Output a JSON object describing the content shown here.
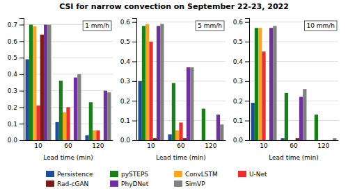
{
  "title": "CSI for narrow convection on September 22-23, 2022",
  "chart_data": [
    {
      "type": "bar",
      "title": "1 mm/h",
      "xlabel": "Lead time (min)",
      "categories": [
        "10",
        "60",
        "120"
      ],
      "series": [
        {
          "name": "Persistence",
          "color": "#1f4e99",
          "values": [
            0.49,
            0.11,
            0.03
          ]
        },
        {
          "name": "pySTEPS",
          "color": "#1a7f1a",
          "values": [
            0.7,
            0.36,
            0.23
          ]
        },
        {
          "name": "ConvLSTM",
          "color": "#f5a623",
          "values": [
            0.69,
            0.17,
            0.06
          ]
        },
        {
          "name": "U-Net",
          "color": "#e83030",
          "values": [
            0.21,
            0.2,
            0.06
          ]
        },
        {
          "name": "Rad-cGAN",
          "color": "#7b1c1c",
          "values": [
            0.64,
            0.0,
            0.0
          ]
        },
        {
          "name": "PhyDNet",
          "color": "#7030a0",
          "values": [
            0.7,
            0.38,
            0.3
          ]
        },
        {
          "name": "SimVP",
          "color": "#808080",
          "values": [
            0.7,
            0.4,
            0.29
          ]
        }
      ],
      "ylim": [
        0.0,
        0.74
      ],
      "yticks": [
        {
          "value": 0.0,
          "label": "0.0"
        },
        0.1,
        0.2,
        0.3,
        0.4,
        0.5,
        0.6,
        0.7
      ],
      "grid": true,
      "legend": "bottom"
    },
    {
      "type": "bar",
      "title": "5 mm/h",
      "xlabel": "Lead time (min)",
      "categories": [
        "10",
        "60",
        "120"
      ],
      "series": [
        {
          "name": "Persistence",
          "color": "#1f4e99",
          "values": [
            0.3,
            0.03,
            0.0
          ]
        },
        {
          "name": "pySTEPS",
          "color": "#1a7f1a",
          "values": [
            0.58,
            0.29,
            0.16
          ]
        },
        {
          "name": "ConvLSTM",
          "color": "#f5a623",
          "values": [
            0.59,
            0.05,
            0.0
          ]
        },
        {
          "name": "U-Net",
          "color": "#e83030",
          "values": [
            0.5,
            0.09,
            0.0
          ]
        },
        {
          "name": "Rad-cGAN",
          "color": "#7b1c1c",
          "values": [
            0.01,
            0.01,
            0.0
          ]
        },
        {
          "name": "PhyDNet",
          "color": "#7030a0",
          "values": [
            0.58,
            0.37,
            0.13
          ]
        },
        {
          "name": "SimVP",
          "color": "#808080",
          "values": [
            0.59,
            0.37,
            0.08
          ]
        }
      ],
      "ylim": [
        0.0,
        0.62
      ],
      "yticks": [
        {
          "value": 0.0,
          "label": "0.0"
        },
        0.1,
        0.2,
        0.3,
        0.4,
        0.5,
        0.6
      ],
      "grid": true
    },
    {
      "type": "bar",
      "title": "10 mm/h",
      "xlabel": "Lead time (min)",
      "categories": [
        "10",
        "60",
        "120"
      ],
      "series": [
        {
          "name": "Persistence",
          "color": "#1f4e99",
          "values": [
            0.19,
            0.01,
            0.0
          ]
        },
        {
          "name": "pySTEPS",
          "color": "#1a7f1a",
          "values": [
            0.57,
            0.24,
            0.13
          ]
        },
        {
          "name": "ConvLSTM",
          "color": "#f5a623",
          "values": [
            0.57,
            0.0,
            0.0
          ]
        },
        {
          "name": "U-Net",
          "color": "#e83030",
          "values": [
            0.45,
            0.0,
            0.0
          ]
        },
        {
          "name": "Rad-cGAN",
          "color": "#7b1c1c",
          "values": [
            0.0,
            0.01,
            0.0
          ]
        },
        {
          "name": "PhyDNet",
          "color": "#7030a0",
          "values": [
            0.57,
            0.22,
            0.0
          ]
        },
        {
          "name": "SimVP",
          "color": "#808080",
          "values": [
            0.58,
            0.26,
            0.01
          ]
        }
      ],
      "ylim": [
        0.0,
        0.62
      ],
      "yticks": [
        {
          "value": 0.0,
          "label": "0.0"
        },
        0.1,
        0.2,
        0.3,
        0.4,
        0.5,
        0.6
      ],
      "grid": true
    }
  ]
}
